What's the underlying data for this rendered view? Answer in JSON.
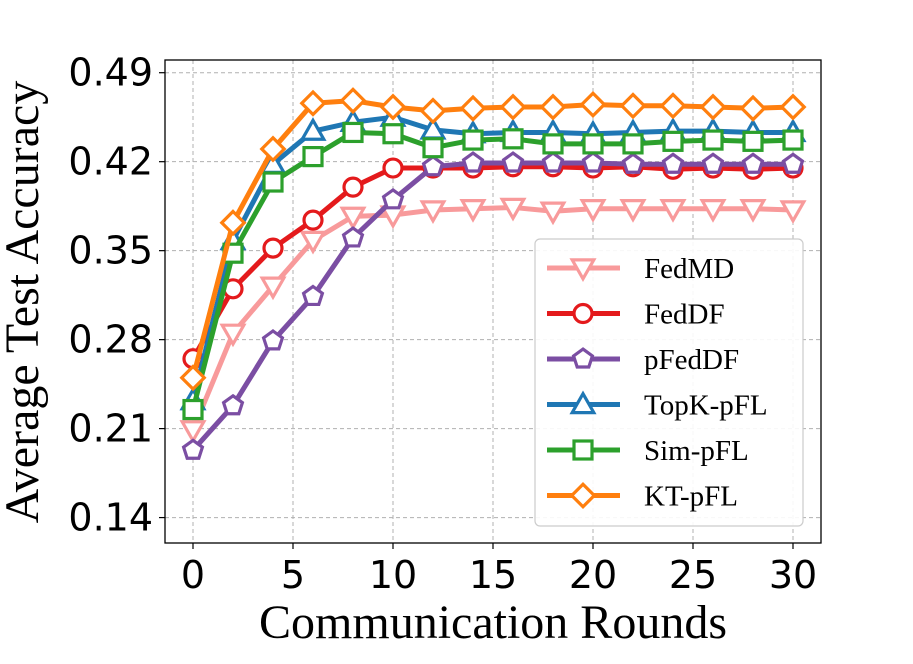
{
  "chart_data": {
    "type": "line",
    "title": "",
    "xlabel": "Communication Rounds",
    "ylabel": "Average Test Accuracy",
    "x": [
      0,
      2,
      4,
      6,
      8,
      10,
      12,
      14,
      16,
      18,
      20,
      22,
      24,
      26,
      28,
      30
    ],
    "xlim": [
      -1.4,
      31.4
    ],
    "ylim": [
      0.12,
      0.5
    ],
    "xticks": [
      0,
      5,
      10,
      15,
      20,
      25,
      30
    ],
    "xtick_labels": [
      "0",
      "5",
      "10",
      "15",
      "20",
      "25",
      "30"
    ],
    "yticks": [
      0.14,
      0.21,
      0.28,
      0.35,
      0.42,
      0.49
    ],
    "ytick_labels": [
      "0.14",
      "0.21",
      "0.28",
      "0.35",
      "0.42",
      "0.49"
    ],
    "grid": true,
    "legend_position": "lower-right",
    "series": [
      {
        "name": "FedMD",
        "color": "#f89a9b",
        "marker": "triangle-down",
        "values": [
          0.209,
          0.285,
          0.322,
          0.358,
          0.377,
          0.378,
          0.382,
          0.383,
          0.384,
          0.381,
          0.383,
          0.383,
          0.383,
          0.383,
          0.383,
          0.382
        ]
      },
      {
        "name": "FedDF",
        "color": "#e41a1c",
        "marker": "circle",
        "values": [
          0.265,
          0.32,
          0.352,
          0.374,
          0.4,
          0.415,
          0.415,
          0.415,
          0.416,
          0.416,
          0.415,
          0.416,
          0.414,
          0.415,
          0.414,
          0.415
        ]
      },
      {
        "name": "pFedDF",
        "color": "#7b4ea3",
        "marker": "pentagon",
        "values": [
          0.193,
          0.228,
          0.279,
          0.314,
          0.36,
          0.39,
          0.416,
          0.419,
          0.419,
          0.419,
          0.419,
          0.418,
          0.418,
          0.418,
          0.418,
          0.418
        ]
      },
      {
        "name": "TopK-pFL",
        "color": "#1f77b4",
        "marker": "triangle-up",
        "values": [
          0.232,
          0.358,
          0.418,
          0.444,
          0.451,
          0.455,
          0.445,
          0.442,
          0.443,
          0.443,
          0.442,
          0.443,
          0.444,
          0.444,
          0.443,
          0.443
        ]
      },
      {
        "name": "Sim-pFL",
        "color": "#2ca02c",
        "marker": "square",
        "values": [
          0.225,
          0.348,
          0.404,
          0.424,
          0.443,
          0.442,
          0.431,
          0.437,
          0.438,
          0.434,
          0.434,
          0.434,
          0.436,
          0.437,
          0.436,
          0.437
        ]
      },
      {
        "name": "KT-pFL",
        "color": "#ff7f0e",
        "marker": "diamond",
        "values": [
          0.25,
          0.372,
          0.43,
          0.466,
          0.468,
          0.463,
          0.46,
          0.462,
          0.463,
          0.463,
          0.465,
          0.464,
          0.464,
          0.463,
          0.462,
          0.463
        ]
      }
    ]
  }
}
